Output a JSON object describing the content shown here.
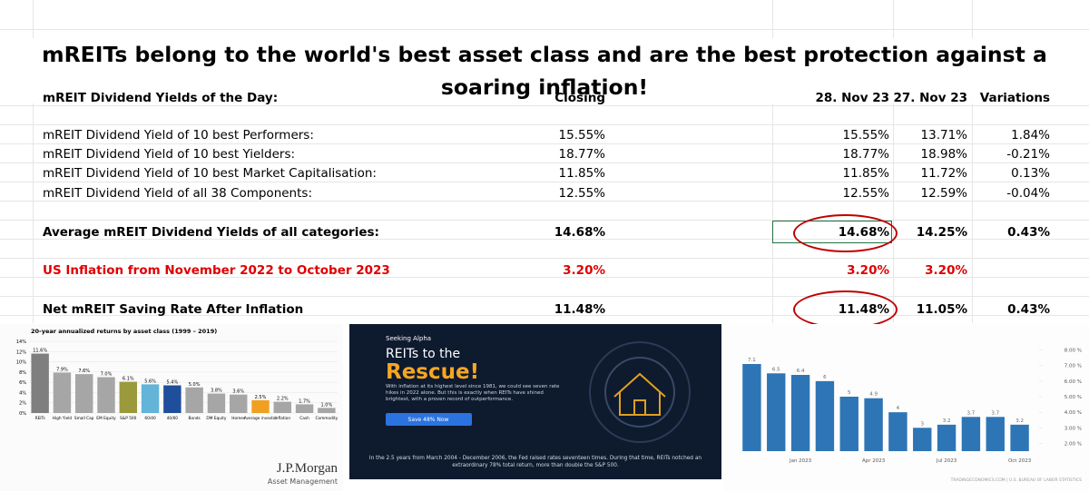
{
  "title": "mREITs belong to the world's best asset class and are the best protection against a soaring inflation!",
  "table": {
    "header": [
      "mREIT Dividend Yields of the Day:",
      "Closing",
      "28. Nov 23",
      "27. Nov 23",
      "Variations"
    ],
    "rows": [
      [
        "mREIT Dividend Yield of 10 best Performers:",
        "15.55%",
        "15.55%",
        "13.71%",
        "1.84%"
      ],
      [
        "mREIT Dividend Yield of 10 best Yielders:",
        "18.77%",
        "18.77%",
        "18.98%",
        "-0.21%"
      ],
      [
        "mREIT Dividend Yield of 10 best Market Capitalisation:",
        "11.85%",
        "11.85%",
        "11.72%",
        "0.13%"
      ],
      [
        "mREIT Dividend Yield of all 38 Components:",
        "12.55%",
        "12.55%",
        "12.59%",
        "-0.04%"
      ],
      [
        "Average mREIT Dividend Yields of all categories:",
        "14.68%",
        "14.68%",
        "14.25%",
        "0.43%"
      ],
      [
        "US Inflation from November 2022 to October 2023",
        "3.20%",
        "3.20%",
        "3.20%"
      ],
      [
        "Net mREIT Saving Rate After Inflation",
        "11.48%",
        "11.48%",
        "11.05%",
        "0.43%"
      ]
    ]
  },
  "asset_chart": {
    "type": "bar",
    "title": "20-year annualized returns by asset class (1999 – 2019)",
    "categories": [
      "REITs",
      "High Yield",
      "Small Cap",
      "EM Equity",
      "S&P 500",
      "60/40",
      "40/60",
      "Bonds",
      "DM Equity",
      "Homes",
      "Average investor",
      "Inflation",
      "Cash",
      "Commodity"
    ],
    "values": [
      11.6,
      7.9,
      7.6,
      7.0,
      6.1,
      5.6,
      5.4,
      5.0,
      3.8,
      3.6,
      2.5,
      2.2,
      1.7,
      1.0
    ],
    "value_labels": [
      "11.6%",
      "7.9%",
      "7.6%",
      "7.0%",
      "6.1%",
      "5.6%",
      "5.4%",
      "5.0%",
      "3.8%",
      "3.6%",
      "2.5%",
      "2.2%",
      "1.7%",
      "1.0%"
    ],
    "colors": [
      "#7f7f7f",
      "#a6a6a6",
      "#a6a6a6",
      "#a6a6a6",
      "#9a9a3c",
      "#62b4d8",
      "#1f4e9c",
      "#a6a6a6",
      "#a6a6a6",
      "#a6a6a6",
      "#f0a020",
      "#a6a6a6",
      "#a6a6a6",
      "#a6a6a6"
    ],
    "ylim": [
      0,
      14
    ],
    "yticks": [
      {
        "value": 0,
        "label": "0%"
      },
      {
        "value": 2,
        "label": "2%"
      },
      {
        "value": 4,
        "label": "4%"
      },
      {
        "value": 6,
        "label": "6%"
      },
      {
        "value": 8,
        "label": "8%"
      },
      {
        "value": 10,
        "label": "10%"
      },
      {
        "value": 12,
        "label": "12%"
      },
      {
        "value": 14,
        "label": "14%"
      }
    ],
    "logo": "J.P.Morgan",
    "logo_sub": "Asset Management"
  },
  "promo": {
    "brand": "Seeking Alpha",
    "headline": "REITs to the",
    "headline_accent": "Rescue!",
    "body": "With inflation at its highest level since 1981, we could see seven rate hikes in 2022 alone. But this is exactly when REITs have shined brightest, with a proven record of outperformance.",
    "button": "Save 48% Now",
    "footer": "In the 2.5 years from March 2004 - December 2006, the Fed raised rates seventeen times. During that time, REITs notched an extraordinary 78% total return, more than double the S&P 500."
  },
  "inflation_chart": {
    "type": "bar",
    "categories": [
      null,
      null,
      "Jan 2023",
      null,
      null,
      "Apr 2023",
      null,
      null,
      "Jul 2023",
      null,
      null,
      "Oct 2023"
    ],
    "values": [
      7.1,
      6.5,
      6.4,
      6,
      5,
      4.9,
      4,
      3,
      3.2,
      3.7,
      3.7,
      3.2
    ],
    "color": "#2e75b6",
    "ylim": [
      1.5,
      8.5
    ],
    "yticks": [
      {
        "value": 2,
        "label": "2.00 %"
      },
      {
        "value": 3,
        "label": "3.00 %"
      },
      {
        "value": 4,
        "label": "4.00 %"
      },
      {
        "value": 5,
        "label": "5.00 %"
      },
      {
        "value": 6,
        "label": "6.00 %"
      },
      {
        "value": 7,
        "label": "7.00 %"
      },
      {
        "value": 8,
        "label": "8.00 %"
      }
    ],
    "source": "TRADINGECONOMICS.COM | U.S. BUREAU OF LABOR STATISTICS"
  }
}
